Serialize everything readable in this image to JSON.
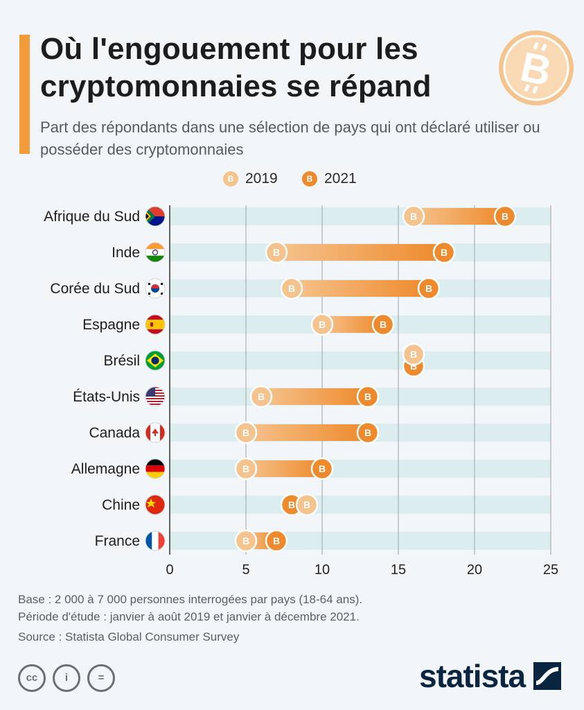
{
  "title": "Où l'engouement pour les cryptomonnaies se répand",
  "subtitle": "Part des répondants dans une sélection de pays qui ont déclaré utiliser ou posséder des cryptomonnaies",
  "colors": {
    "accent": "#f29b3a",
    "series_2019": "#f5c38d",
    "series_2021": "#ee8a2c",
    "row_band": "#dcedf0",
    "gridline": "#9aa3a8",
    "brand_navy": "#0a2540"
  },
  "icons": {
    "coin": "bitcoin-icon",
    "license": [
      "creative-commons-icon",
      "attribution-icon",
      "no-derivatives-icon"
    ]
  },
  "footer": {
    "base": "Base : 2 000 à 7 000 personnes interrogées par pays (18-64 ans).",
    "period": "Période d'étude : janvier à août 2019 et janvier à décembre 2021.",
    "source": "Source : Statista Global Consumer Survey",
    "brand": "statista",
    "license_labels": [
      "cc",
      "i",
      "="
    ]
  },
  "chart_data": {
    "type": "dumbbell",
    "categories": [
      "Afrique du Sud",
      "Inde",
      "Corée du Sud",
      "Espagne",
      "Brésil",
      "États-Unis",
      "Canada",
      "Allemagne",
      "Chine",
      "France"
    ],
    "flags": [
      "south-africa-flag-icon",
      "india-flag-icon",
      "south-korea-flag-icon",
      "spain-flag-icon",
      "brazil-flag-icon",
      "usa-flag-icon",
      "canada-flag-icon",
      "germany-flag-icon",
      "china-flag-icon",
      "france-flag-icon"
    ],
    "series": [
      {
        "name": "2019",
        "values": [
          16,
          7,
          8,
          10,
          16,
          6,
          5,
          5,
          9,
          5
        ]
      },
      {
        "name": "2021",
        "values": [
          22,
          18,
          17,
          14,
          16,
          13,
          13,
          10,
          8,
          7
        ]
      }
    ],
    "xlim": [
      0,
      25
    ],
    "xticks": [
      0,
      5,
      10,
      15,
      20,
      25
    ],
    "xlabel": "",
    "ylabel": "",
    "grid": true,
    "legend_position": "top-center"
  }
}
